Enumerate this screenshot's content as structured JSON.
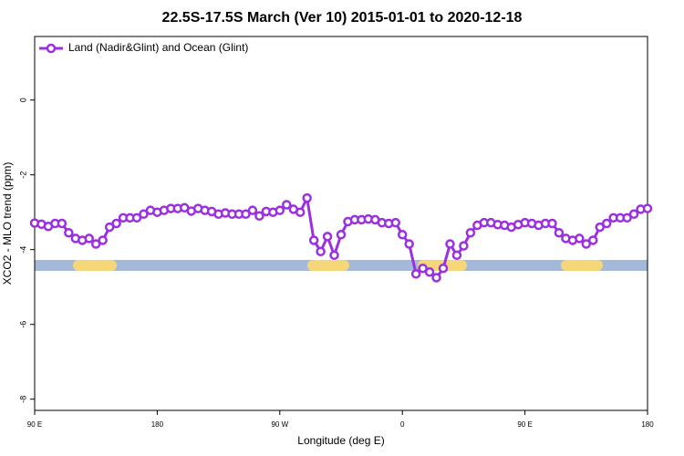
{
  "chart_data": {
    "type": "line",
    "title": "22.5S-17.5S March (Ver 10)   2015-01-01 to 2020-12-18",
    "x_label": "Longitude (deg E)",
    "y_label": "XCO2 - MLO trend (ppm)",
    "x": [
      90,
      95,
      100,
      105,
      110,
      115,
      120,
      125,
      130,
      135,
      140,
      145,
      150,
      155,
      160,
      165,
      170,
      175,
      180,
      185,
      190,
      195,
      200,
      205,
      210,
      215,
      220,
      225,
      230,
      235,
      240,
      245,
      250,
      255,
      260,
      265,
      270,
      275,
      280,
      285,
      290,
      295,
      300,
      305,
      310,
      315,
      320,
      325,
      330,
      335,
      340,
      345,
      350,
      355,
      360,
      365,
      370,
      375,
      380,
      385,
      390,
      395,
      400,
      405,
      410,
      415,
      420,
      425,
      430,
      435,
      440,
      445,
      450,
      455,
      460,
      465,
      470,
      475,
      480,
      485,
      490,
      495,
      500,
      505,
      510,
      515,
      520,
      525,
      530,
      535,
      540
    ],
    "series": [
      {
        "name": "Land (Nadir&Glint) and Ocean (Glint)",
        "color": "#9b30e0",
        "values": [
          -3.29,
          -3.32,
          -3.38,
          -3.3,
          -3.3,
          -3.55,
          -3.7,
          -3.75,
          -3.7,
          -3.85,
          -3.75,
          -3.4,
          -3.3,
          -3.15,
          -3.15,
          -3.15,
          -3.05,
          -2.95,
          -3.0,
          -2.95,
          -2.9,
          -2.9,
          -2.88,
          -2.97,
          -2.9,
          -2.95,
          -2.98,
          -3.05,
          -3.02,
          -3.05,
          -3.05,
          -3.05,
          -2.95,
          -3.1,
          -2.98,
          -3.0,
          -2.95,
          -2.8,
          -2.92,
          -3.0,
          -2.62,
          -3.75,
          -4.05,
          -3.65,
          -4.15,
          -3.6,
          -3.25,
          -3.2,
          -3.2,
          -3.18,
          -3.2,
          -3.28,
          -3.3,
          -3.28,
          -3.6,
          -3.85,
          -4.65,
          -4.5,
          -4.6,
          -4.75,
          -4.5,
          -3.85,
          -4.15,
          -3.9,
          -3.55,
          -3.35,
          -3.28,
          -3.28,
          -3.33,
          -3.35,
          -3.4,
          -3.33,
          -3.28,
          -3.3,
          -3.35,
          -3.3,
          -3.3,
          -3.55,
          -3.7,
          -3.75,
          -3.7,
          -3.85,
          -3.75,
          -3.4,
          -3.3,
          -3.15,
          -3.15,
          -3.15,
          -3.05,
          -2.92,
          -2.9
        ]
      }
    ],
    "xlim": [
      90,
      540
    ],
    "xticks": [
      {
        "value": 90,
        "label": "90 E"
      },
      180,
      {
        "value": 270,
        "label": "90 W"
      },
      {
        "value": 360,
        "label": "0"
      },
      {
        "value": 450,
        "label": "90 E"
      },
      {
        "value": 540,
        "label": "180"
      }
    ],
    "ylim": [
      -8.3,
      1.7
    ],
    "yticks": [
      0,
      -2,
      -4,
      -6,
      -8
    ],
    "legend": "top-left"
  }
}
